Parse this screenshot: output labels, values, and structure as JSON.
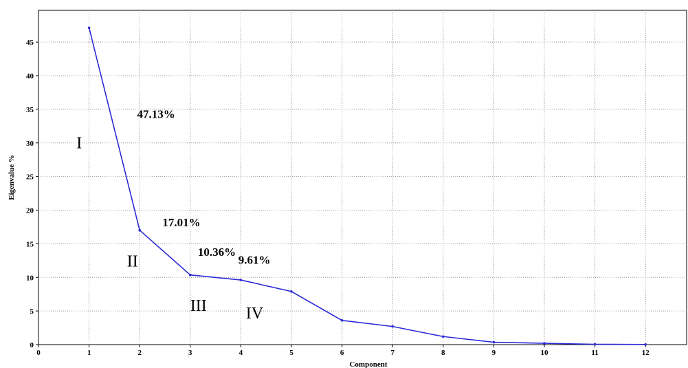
{
  "chart_data": {
    "type": "line",
    "title": "",
    "xlabel": "Component",
    "ylabel": "Eigenvalue %",
    "xlim": [
      0,
      13
    ],
    "ylim": [
      0,
      48
    ],
    "x_ticks": [
      0,
      1,
      2,
      3,
      4,
      5,
      6,
      7,
      8,
      9,
      10,
      11,
      12
    ],
    "y_ticks": [
      0,
      5,
      10,
      15,
      20,
      25,
      30,
      35,
      40,
      45
    ],
    "grid": true,
    "line_color": "#2b2bd6",
    "series": [
      {
        "x": [
          1,
          2,
          3,
          4,
          5,
          6,
          7,
          8,
          9,
          10,
          11,
          12
        ],
        "values": [
          47.13,
          17.01,
          10.36,
          9.61,
          7.9,
          3.6,
          2.7,
          1.2,
          0.35,
          0.2,
          0.05,
          0.02
        ]
      }
    ],
    "annotations": [
      {
        "text": "47.13%",
        "x": 1.95,
        "y": 33.7,
        "style": "pct"
      },
      {
        "text": "17.01%",
        "x": 2.45,
        "y": 17.6,
        "style": "pct"
      },
      {
        "text": "10.36%",
        "x": 3.15,
        "y": 13.2,
        "style": "pct"
      },
      {
        "text": "9.61%",
        "x": 3.95,
        "y": 12.0,
        "style": "pct"
      },
      {
        "text": "I",
        "x": 0.75,
        "y": 29.2,
        "style": "roman"
      },
      {
        "text": "II",
        "x": 1.75,
        "y": 11.6,
        "style": "roman"
      },
      {
        "text": "III",
        "x": 3.0,
        "y": 5.0,
        "style": "roman"
      },
      {
        "text": "IV",
        "x": 4.1,
        "y": 3.9,
        "style": "roman"
      }
    ]
  }
}
